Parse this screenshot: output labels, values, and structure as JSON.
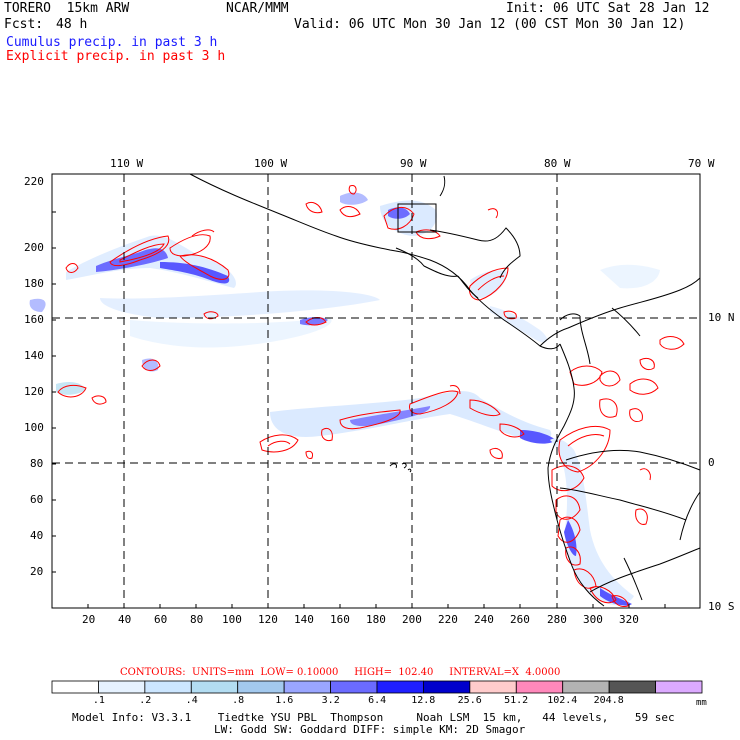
{
  "header": {
    "model": "TORERO  15km ARW",
    "org": "NCAR/MMM",
    "init": "Init: 06 UTC Sat 28 Jan 12",
    "fcst_label": "Fcst:",
    "fcst_value": "48 h",
    "valid": "Valid: 06 UTC Mon 30 Jan 12 (00 CST Mon 30 Jan 12)",
    "field1": "Cumulus precip. in past 3 h",
    "field2": "Explicit precip. in past 3 h"
  },
  "colors": {
    "cumulus": "#1a1aff",
    "explicit": "#ff0000",
    "coast": "#000000"
  },
  "map": {
    "lon_labels": [
      "110 W",
      "100 W",
      "90 W",
      "80 W",
      "70 W"
    ],
    "lat_labels": [
      "10 N",
      "0",
      "10 S"
    ],
    "x_ticks": [
      "20",
      "40",
      "60",
      "80",
      "100",
      "120",
      "140",
      "160",
      "180",
      "200",
      "220",
      "240",
      "260",
      "280",
      "300",
      "320"
    ],
    "y_ticks": [
      "20",
      "40",
      "60",
      "80",
      "100",
      "120",
      "140",
      "160",
      "180",
      "200",
      "220"
    ]
  },
  "contours": "CONTOURS:  UNITS=mm  LOW= 0.10000     HIGH=  102.40     INTERVAL=X  4.0000",
  "colorbar": {
    "unit": "mm",
    "labels": [
      ".1",
      ".2",
      ".4",
      ".8",
      "1.6",
      "3.2",
      "6.4",
      "12.8",
      "25.6",
      "51.2",
      "102.4",
      "204.8"
    ],
    "colors": [
      "#ffffff",
      "#e6f2ff",
      "#cce6ff",
      "#b3ddf2",
      "#a3c9ee",
      "#9aa6ff",
      "#6b6bff",
      "#1f1fff",
      "#0000cc",
      "#ffcccc",
      "#ff88bb",
      "#b3b3b3",
      "#555555",
      "#dcaaff"
    ]
  },
  "footer": {
    "line1": "Model Info: V3.3.1    Tiedtke YSU PBL  Thompson     Noah LSM  15 km,   44 levels,    59 sec",
    "line2": "LW: Godd SW: Goddard DIFF: simple KM: 2D Smagor"
  }
}
